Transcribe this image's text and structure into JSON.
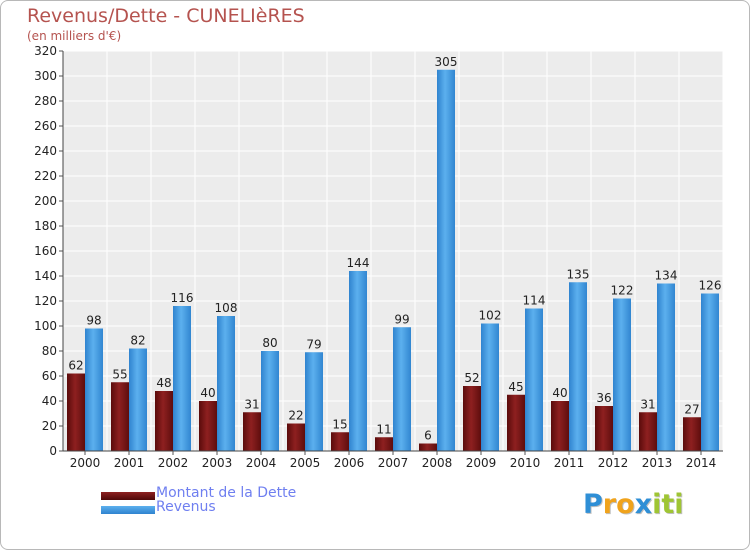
{
  "title": "Revenus/Dette - CUNELIèRES",
  "subtitle": "(en milliers d'€)",
  "chart_data": {
    "type": "bar",
    "title": "Revenus/Dette - CUNELIèRES",
    "subtitle": "(en milliers d'€)",
    "xlabel": "",
    "ylabel": "",
    "ylim": [
      0,
      320
    ],
    "ytick_step": 20,
    "grid": true,
    "categories": [
      "2000",
      "2001",
      "2002",
      "2003",
      "2004",
      "2005",
      "2006",
      "2007",
      "2008",
      "2009",
      "2010",
      "2011",
      "2012",
      "2013",
      "2014"
    ],
    "series": [
      {
        "name": "Montant de la Dette",
        "color": "#7a1515",
        "values": [
          62,
          55,
          48,
          40,
          31,
          22,
          15,
          11,
          6,
          52,
          45,
          40,
          36,
          31,
          27
        ]
      },
      {
        "name": "Revenus",
        "color": "#3d94dd",
        "values": [
          98,
          82,
          116,
          108,
          80,
          79,
          144,
          99,
          305,
          102,
          114,
          135,
          122,
          134,
          126
        ]
      }
    ]
  },
  "legend": [
    {
      "label": "Montant de la Dette",
      "color": "#6b1010"
    },
    {
      "label": "Revenus",
      "color": "#3d94dd"
    }
  ],
  "logo": {
    "letters": [
      "P",
      "r",
      "o",
      "x",
      "i",
      "t",
      "i"
    ],
    "colors": [
      "#2f8fd6",
      "#f0a31c",
      "#f0a31c",
      "#2f8fd6",
      "#9fc534",
      "#9fc534",
      "#9fc534"
    ]
  }
}
